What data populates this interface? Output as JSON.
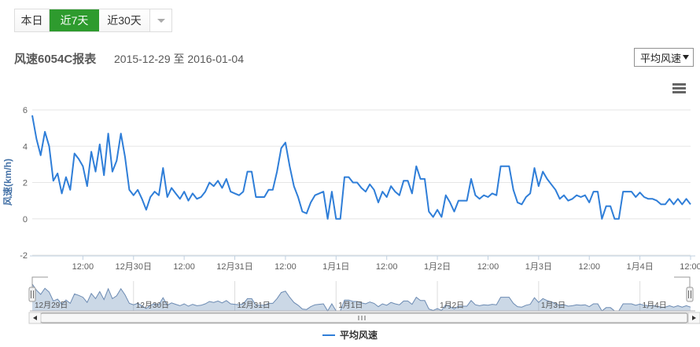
{
  "colors": {
    "accent_green": "#2e9b2e",
    "series_blue": "#2f7ed8",
    "axis_title_blue": "#4572a7",
    "grid_line": "#e6e6e6",
    "axis_line": "#c0d0e0",
    "axis_label": "#606060",
    "nav_fill": "rgba(69,114,167,0.28)",
    "nav_stroke": "#6b8ab2",
    "nav_outline": "#999999"
  },
  "header": {
    "tabs": [
      {
        "label": "本日",
        "active": false
      },
      {
        "label": "近7天",
        "active": true
      },
      {
        "label": "近30天",
        "active": false
      }
    ]
  },
  "report": {
    "title": "风速6054C报表",
    "date_range": "2015-12-29 至 2016-01-04",
    "metric_select": {
      "value": "平均风速"
    }
  },
  "legend": {
    "label": "平均风速"
  },
  "chart_data": {
    "type": "line",
    "title": "",
    "ylabel": "风速(km/h)",
    "ylim": [
      -2,
      6
    ],
    "yticks": [
      {
        "value": 6,
        "label": "6"
      },
      {
        "value": 4,
        "label": "4"
      },
      {
        "value": 2,
        "label": "2"
      },
      {
        "value": 0,
        "label": "0"
      },
      {
        "value": -2,
        "label": "-2"
      }
    ],
    "xticks": [
      {
        "t": 12,
        "label": "12:00"
      },
      {
        "t": 24,
        "label": "12月30日"
      },
      {
        "t": 36,
        "label": "12:00"
      },
      {
        "t": 48,
        "label": "12月31日"
      },
      {
        "t": 60,
        "label": "12:00"
      },
      {
        "t": 72,
        "label": "1月1日"
      },
      {
        "t": 84,
        "label": "12:00"
      },
      {
        "t": 96,
        "label": "1月2日"
      },
      {
        "t": 108,
        "label": "12:00"
      },
      {
        "t": 120,
        "label": "1月3日"
      },
      {
        "t": 132,
        "label": "12:00"
      },
      {
        "t": 144,
        "label": "1月4日"
      },
      {
        "t": 156,
        "label": "12:00"
      }
    ],
    "navigator_labels": [
      {
        "t": 0,
        "label": "12月29日"
      },
      {
        "t": 24,
        "label": "12月30日"
      },
      {
        "t": 48,
        "label": "12月31日"
      },
      {
        "t": 72,
        "label": "1月1日"
      },
      {
        "t": 96,
        "label": "1月2日"
      },
      {
        "t": 120,
        "label": "1月3日"
      },
      {
        "t": 144,
        "label": "1月4日"
      }
    ],
    "series": [
      {
        "name": "平均风速",
        "start": "2015-12-29 00:00",
        "interval_hours": 1,
        "values": [
          5.7,
          4.4,
          3.5,
          4.8,
          4.0,
          2.1,
          2.5,
          1.4,
          2.3,
          1.6,
          3.6,
          3.3,
          2.9,
          1.8,
          3.7,
          2.6,
          4.1,
          2.4,
          4.7,
          2.6,
          3.2,
          4.7,
          3.4,
          1.6,
          1.3,
          1.6,
          1.1,
          0.5,
          1.2,
          1.5,
          1.3,
          2.8,
          1.2,
          1.7,
          1.4,
          1.1,
          1.5,
          1.0,
          1.4,
          1.1,
          1.2,
          1.5,
          2.0,
          1.8,
          2.1,
          1.7,
          2.2,
          1.5,
          1.4,
          1.3,
          1.5,
          2.6,
          2.6,
          1.2,
          1.2,
          1.2,
          1.6,
          1.6,
          2.6,
          3.9,
          4.2,
          2.9,
          1.8,
          1.2,
          0.4,
          0.3,
          0.9,
          1.3,
          1.4,
          1.5,
          0.0,
          1.5,
          0.0,
          0.0,
          2.3,
          2.3,
          2.0,
          2.0,
          1.7,
          1.5,
          1.9,
          1.6,
          0.9,
          1.5,
          1.2,
          1.8,
          1.5,
          1.3,
          2.1,
          2.1,
          1.4,
          2.9,
          2.2,
          2.2,
          0.4,
          0.1,
          0.5,
          0.1,
          1.3,
          0.9,
          0.4,
          1.0,
          1.0,
          1.0,
          2.2,
          1.3,
          1.1,
          1.3,
          1.2,
          1.4,
          1.3,
          2.9,
          2.9,
          2.9,
          1.6,
          0.9,
          0.8,
          1.2,
          1.4,
          2.8,
          1.8,
          2.6,
          2.2,
          1.9,
          1.6,
          1.1,
          1.3,
          1.0,
          1.1,
          1.3,
          1.2,
          1.3,
          0.9,
          1.5,
          1.5,
          0.0,
          0.7,
          0.7,
          0.0,
          0.0,
          1.5,
          1.5,
          1.5,
          1.2,
          1.45,
          1.2,
          1.1,
          1.1,
          1.0,
          0.8,
          0.8,
          1.1,
          0.8,
          1.1,
          0.8,
          1.1,
          0.8
        ]
      }
    ]
  }
}
